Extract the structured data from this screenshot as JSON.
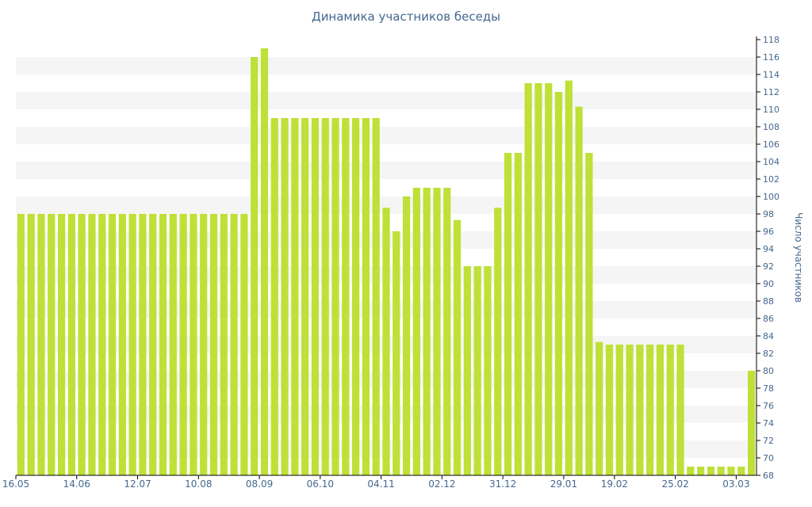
{
  "chart_data": {
    "type": "bar",
    "title": "Динамика участников беседы",
    "ylabel": "Число участников",
    "xlabel": "",
    "ylim": [
      68,
      118
    ],
    "ytick_step": 2,
    "grid": "horizontal alternating bands",
    "bar_color": "#bfe037",
    "band_color": "#f5f5f5",
    "text_color": "#45688e",
    "axis_color": "#000000",
    "x_tick_labels": [
      {
        "label": "16.05",
        "index": 0
      },
      {
        "label": "14.06",
        "index": 6
      },
      {
        "label": "12.07",
        "index": 12
      },
      {
        "label": "10.08",
        "index": 18
      },
      {
        "label": "08.09",
        "index": 24
      },
      {
        "label": "06.10",
        "index": 30
      },
      {
        "label": "04.11",
        "index": 36
      },
      {
        "label": "02.12",
        "index": 42
      },
      {
        "label": "31.12",
        "index": 48
      },
      {
        "label": "29.01",
        "index": 54
      },
      {
        "label": "19.02",
        "index": 59
      },
      {
        "label": "25.02",
        "index": 65
      },
      {
        "label": "03.03",
        "index": 71
      }
    ],
    "values": [
      98,
      98,
      98,
      98,
      98,
      98,
      98,
      98,
      98,
      98,
      98,
      98,
      98,
      98,
      98,
      98,
      98,
      98,
      98,
      98,
      98,
      98,
      98,
      116,
      117,
      109,
      109,
      109,
      109,
      109,
      109,
      109,
      109,
      109,
      109,
      109,
      98.7,
      96,
      100,
      101,
      101,
      101,
      101,
      97.3,
      92,
      92,
      92,
      98.7,
      105,
      105,
      113,
      113,
      113,
      112,
      113.3,
      110.3,
      105,
      83.3,
      83,
      83,
      83,
      83,
      83,
      83,
      83,
      83,
      69,
      69,
      69,
      69,
      69,
      69,
      80
    ]
  }
}
